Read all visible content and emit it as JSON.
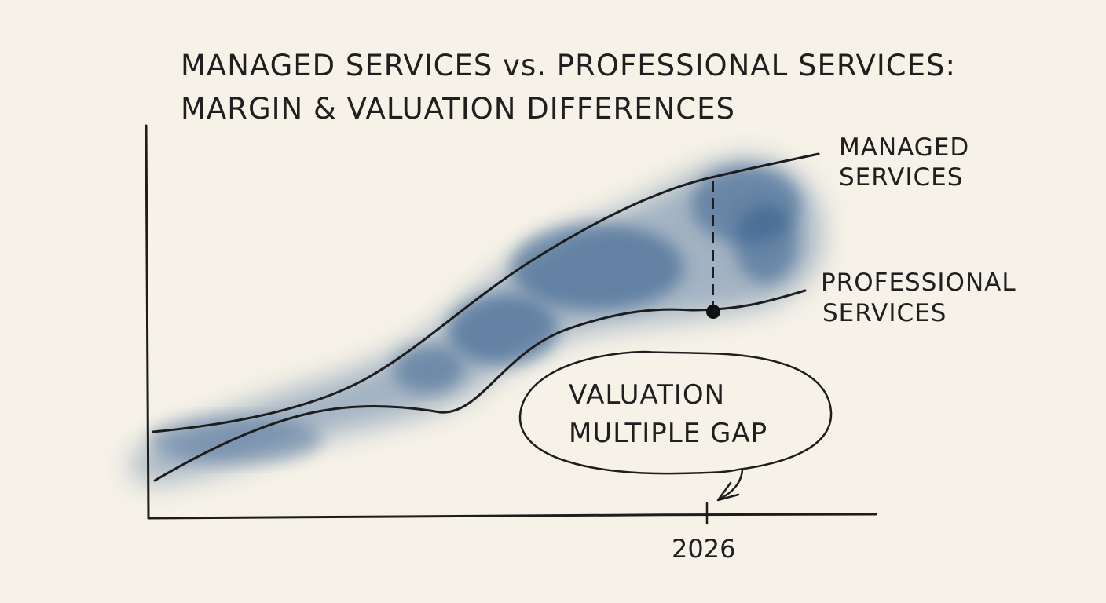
{
  "title": {
    "line1": "MANAGED SERVICES vs. PROFESSIONAL SERVICES:",
    "line2": "MARGIN & VALUATION DIFFERENCES"
  },
  "annotation": {
    "line1": "VALUATION",
    "line2": "MULTIPLE GAP"
  },
  "colors": {
    "background": "#f6f2e7",
    "ink": "#1d1d1d",
    "watercolor": "#2f5a8a"
  },
  "chart_data": {
    "type": "line",
    "title": "MANAGED SERVICES vs. PROFESSIONAL SERVICES: MARGIN & VALUATION DIFFERENCES",
    "xlabel": "",
    "ylabel": "",
    "x_tick_labels": [
      "2026"
    ],
    "grid": false,
    "legend": "direct labels at right end of lines",
    "series": [
      {
        "name": "MANAGED SERVICES",
        "label_lines": [
          "MANAGED",
          "SERVICES"
        ],
        "trend": "rising steeply, ending highest"
      },
      {
        "name": "PROFESSIONAL SERVICES",
        "label_lines": [
          "PROFESSIONAL",
          "SERVICES"
        ],
        "trend": "rising slower, flattening after 2026"
      }
    ],
    "highlight": {
      "x": "2026",
      "description": "gap between the two lines marked at 2026"
    }
  }
}
